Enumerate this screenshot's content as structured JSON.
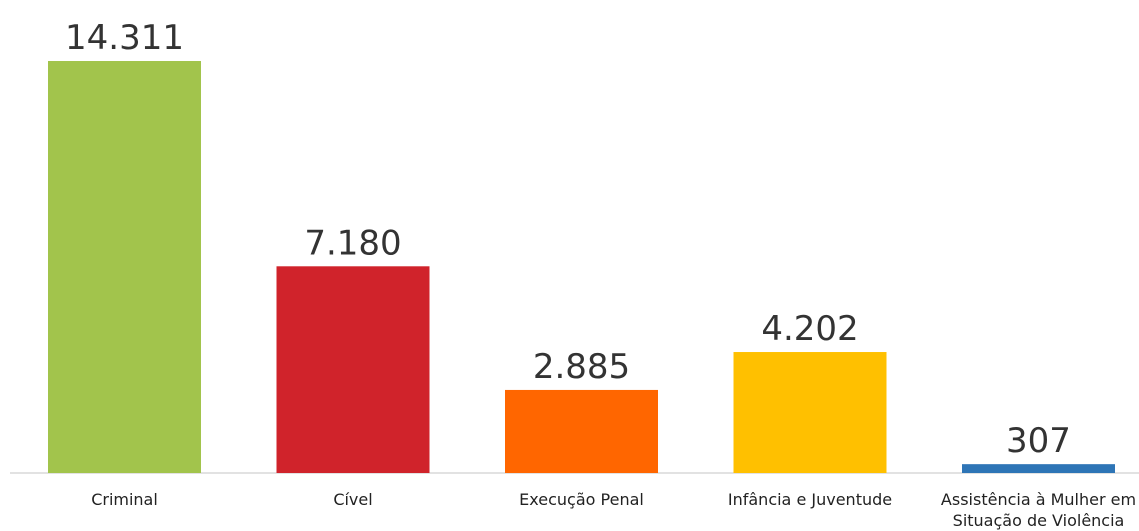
{
  "chart_data": {
    "type": "bar",
    "title": "",
    "xlabel": "",
    "ylabel": "",
    "categories": [
      [
        "Criminal"
      ],
      [
        "Cível"
      ],
      [
        "Execução Penal"
      ],
      [
        "Infância e Juventude"
      ],
      [
        "Assistência à Mulher em",
        "Situação de Violência"
      ]
    ],
    "values": [
      14311,
      7180,
      2885,
      4202,
      307
    ],
    "value_labels": [
      "14.311",
      "7.180",
      "2.885",
      "4.202",
      "307"
    ],
    "colors": [
      "#a2c44c",
      "#d0232b",
      "#ff6600",
      "#ffc000",
      "#2e75b6"
    ],
    "ylim": [
      0,
      14311
    ],
    "grid": false,
    "legend": "none"
  }
}
